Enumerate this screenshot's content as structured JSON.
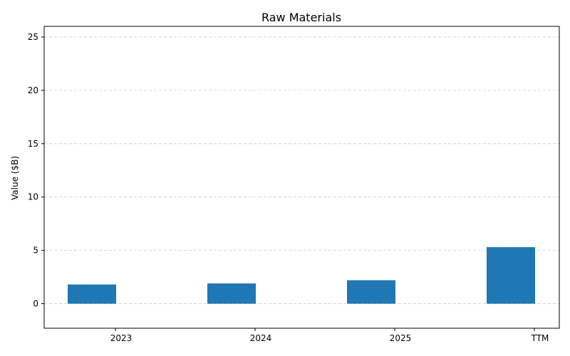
{
  "chart_data": {
    "type": "bar",
    "title": "Raw Materials",
    "xlabel": "",
    "ylabel": "Value ($B)",
    "categories": [
      "2023",
      "2024",
      "2025",
      "TTM"
    ],
    "values": [
      1.8,
      1.9,
      2.2,
      5.3
    ],
    "ylim": [
      -2.3,
      26
    ],
    "yticks": [
      0,
      5,
      10,
      15,
      20,
      25
    ],
    "grid": true,
    "bar_color": "#1f77b4"
  }
}
